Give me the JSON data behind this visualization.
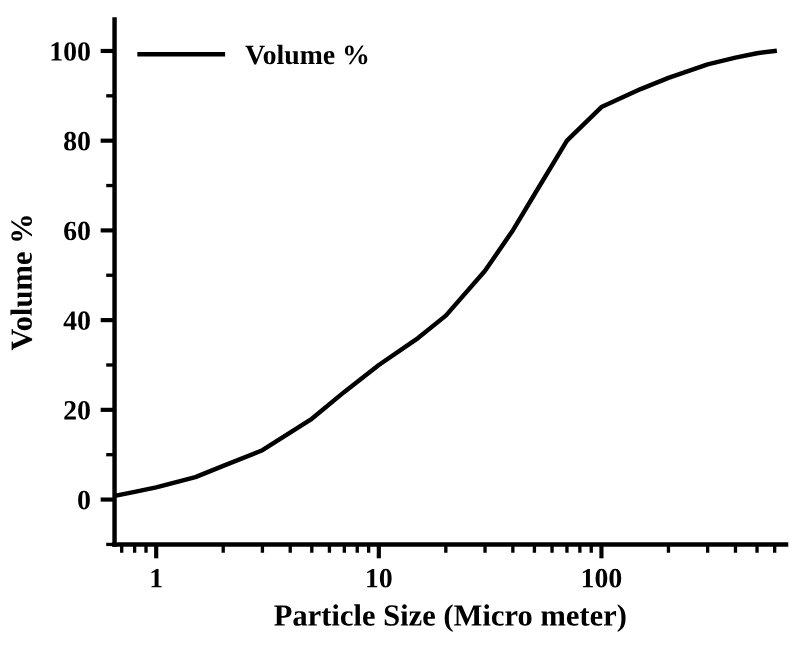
{
  "chart_data": {
    "type": "line",
    "xlabel": "Particle Size (Micro meter)",
    "ylabel": "Volume %",
    "x": [
      0.65,
      0.8,
      1,
      1.5,
      2,
      3,
      5,
      7,
      10,
      15,
      20,
      30,
      40,
      50,
      70,
      100,
      150,
      200,
      300,
      400,
      500,
      600
    ],
    "series": [
      {
        "name": "Volume %",
        "color": "#000000",
        "values": [
          0.8,
          1.7,
          2.7,
          5,
          7.5,
          11,
          18,
          24,
          30,
          36,
          41,
          51,
          60,
          68,
          80,
          87.5,
          91.5,
          94,
          97,
          98.5,
          99.5,
          100
        ]
      }
    ],
    "log": "x",
    "xlim": [
      0.65,
      675
    ],
    "xticks": [
      1,
      10,
      100
    ],
    "ylim": [
      -10,
      107
    ],
    "yticks": [
      0,
      20,
      40,
      60,
      80,
      100
    ],
    "legend": "top left",
    "marker": "none",
    "line_style": "solid",
    "grid": false
  }
}
